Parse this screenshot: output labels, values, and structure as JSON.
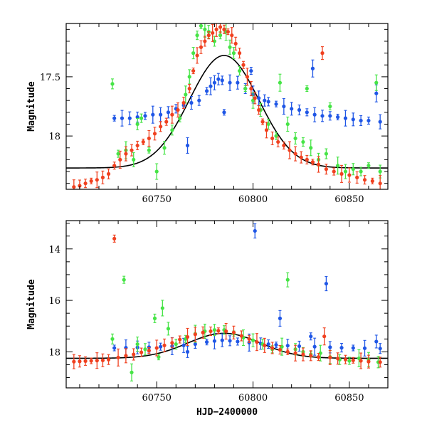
{
  "chart_data": [
    {
      "type": "scatter",
      "title": "",
      "xlabel": "",
      "ylabel": "Magnitude",
      "xlim": [
        60703,
        60870
      ],
      "ylim": [
        18.45,
        17.05
      ],
      "y_inverted": true,
      "x_ticks": [
        60750,
        60800,
        60850
      ],
      "x_tick_labels": [
        "60750",
        "60800",
        "60850"
      ],
      "y_ticks": [
        17.5,
        18
      ],
      "y_tick_labels": [
        "17.5",
        "18"
      ],
      "model": {
        "baseline": 18.27,
        "peak_mag": 17.32,
        "t0": 60785,
        "width_days": 18,
        "color": "#000000"
      },
      "series": [
        {
          "color": "#1f56e6",
          "points": [
            [
              60728,
              17.85
            ],
            [
              60732,
              17.85
            ],
            [
              60736,
              17.85
            ],
            [
              60740,
              17.84
            ],
            [
              60744,
              17.83
            ],
            [
              60748,
              17.82
            ],
            [
              60752,
              17.82
            ],
            [
              60756,
              17.8
            ],
            [
              60760,
              17.77
            ],
            [
              60764,
              17.74
            ],
            [
              60766,
              18.08
            ],
            [
              60768,
              17.72
            ],
            [
              60772,
              17.7
            ],
            [
              60776,
              17.62
            ],
            [
              60778,
              17.58
            ],
            [
              60780,
              17.55
            ],
            [
              60782,
              17.52
            ],
            [
              60784,
              17.53
            ],
            [
              60785,
              17.8
            ],
            [
              60788,
              17.55
            ],
            [
              60792,
              17.55
            ],
            [
              60796,
              17.6
            ],
            [
              60799,
              17.45
            ],
            [
              60800,
              17.65
            ],
            [
              60803,
              17.68
            ],
            [
              60806,
              17.7
            ],
            [
              60808,
              17.71
            ],
            [
              60812,
              17.73
            ],
            [
              60816,
              17.75
            ],
            [
              60820,
              17.77
            ],
            [
              60824,
              17.78
            ],
            [
              60828,
              17.8
            ],
            [
              60831,
              17.43
            ],
            [
              60832,
              17.82
            ],
            [
              60836,
              17.83
            ],
            [
              60840,
              17.83
            ],
            [
              60844,
              17.84
            ],
            [
              60848,
              17.85
            ],
            [
              60852,
              17.86
            ],
            [
              60856,
              17.87
            ],
            [
              60860,
              17.87
            ],
            [
              60864,
              17.64
            ],
            [
              60866,
              17.88
            ]
          ]
        },
        {
          "color": "#46e446",
          "points": [
            [
              60727,
              17.56
            ],
            [
              60730,
              18.15
            ],
            [
              60734,
              18.12
            ],
            [
              60738,
              18.2
            ],
            [
              60740,
              17.9
            ],
            [
              60742,
              17.85
            ],
            [
              60746,
              18.12
            ],
            [
              60750,
              18.3
            ],
            [
              60754,
              18.1
            ],
            [
              60758,
              17.95
            ],
            [
              60762,
              17.85
            ],
            [
              60765,
              17.65
            ],
            [
              60767,
              17.5
            ],
            [
              60769,
              17.3
            ],
            [
              60771,
              17.15
            ],
            [
              60773,
              17.07
            ],
            [
              60775,
              17.1
            ],
            [
              60777,
              17.12
            ],
            [
              60780,
              17.2
            ],
            [
              60783,
              17.15
            ],
            [
              60786,
              17.12
            ],
            [
              60788,
              17.25
            ],
            [
              60790,
              17.3
            ],
            [
              60793,
              17.45
            ],
            [
              60796,
              17.6
            ],
            [
              60800,
              17.7
            ],
            [
              60804,
              17.78
            ],
            [
              60808,
              17.9
            ],
            [
              60812,
              18.0
            ],
            [
              60814,
              17.55
            ],
            [
              60818,
              17.9
            ],
            [
              60822,
              18.02
            ],
            [
              60826,
              18.05
            ],
            [
              60828,
              17.6
            ],
            [
              60830,
              18.1
            ],
            [
              60834,
              18.2
            ],
            [
              60838,
              18.15
            ],
            [
              60840,
              17.75
            ],
            [
              60844,
              18.25
            ],
            [
              60848,
              18.3
            ],
            [
              60852,
              18.28
            ],
            [
              60856,
              18.3
            ],
            [
              60860,
              18.25
            ],
            [
              60864,
              17.55
            ],
            [
              60866,
              18.3
            ]
          ]
        },
        {
          "color": "#f0401f",
          "points": [
            [
              60707,
              18.43
            ],
            [
              60710,
              18.42
            ],
            [
              60713,
              18.4
            ],
            [
              60716,
              18.38
            ],
            [
              60719,
              18.37
            ],
            [
              60722,
              18.35
            ],
            [
              60725,
              18.32
            ],
            [
              60728,
              18.25
            ],
            [
              60731,
              18.2
            ],
            [
              60734,
              18.15
            ],
            [
              60737,
              18.12
            ],
            [
              60740,
              18.08
            ],
            [
              60743,
              18.05
            ],
            [
              60746,
              18.02
            ],
            [
              60749,
              17.98
            ],
            [
              60752,
              17.92
            ],
            [
              60755,
              17.88
            ],
            [
              60758,
              17.82
            ],
            [
              60761,
              17.78
            ],
            [
              60764,
              17.72
            ],
            [
              60767,
              17.6
            ],
            [
              60769,
              17.45
            ],
            [
              60771,
              17.32
            ],
            [
              60773,
              17.25
            ],
            [
              60775,
              17.2
            ],
            [
              60777,
              17.15
            ],
            [
              60779,
              17.13
            ],
            [
              60781,
              17.1
            ],
            [
              60783,
              17.08
            ],
            [
              60785,
              17.1
            ],
            [
              60787,
              17.12
            ],
            [
              60789,
              17.15
            ],
            [
              60791,
              17.22
            ],
            [
              60793,
              17.3
            ],
            [
              60795,
              17.4
            ],
            [
              60797,
              17.5
            ],
            [
              60799,
              17.6
            ],
            [
              60801,
              17.68
            ],
            [
              60803,
              17.78
            ],
            [
              60805,
              17.88
            ],
            [
              60807,
              17.95
            ],
            [
              60810,
              18.02
            ],
            [
              60813,
              18.05
            ],
            [
              60816,
              18.08
            ],
            [
              60819,
              18.12
            ],
            [
              60822,
              18.15
            ],
            [
              60825,
              18.18
            ],
            [
              60828,
              18.2
            ],
            [
              60831,
              18.22
            ],
            [
              60834,
              18.24
            ],
            [
              60836,
              17.3
            ],
            [
              60838,
              18.28
            ],
            [
              60842,
              18.3
            ],
            [
              60846,
              18.32
            ],
            [
              60850,
              18.33
            ],
            [
              60854,
              18.35
            ],
            [
              60858,
              18.37
            ],
            [
              60862,
              18.38
            ],
            [
              60866,
              18.4
            ]
          ]
        }
      ]
    },
    {
      "type": "scatter",
      "title": "",
      "xlabel": "HJD−2400000",
      "ylabel": "Magnitude",
      "xlim": [
        60703,
        60870
      ],
      "ylim": [
        19.4,
        12.9
      ],
      "y_inverted": true,
      "x_ticks": [
        60750,
        60800,
        60850
      ],
      "x_tick_labels": [
        "60750",
        "60800",
        "60850"
      ],
      "y_ticks": [
        14,
        16,
        18
      ],
      "y_tick_labels": [
        "14",
        "16",
        "18"
      ],
      "model": {
        "baseline": 18.25,
        "peak_mag": 17.28,
        "t0": 60785,
        "width_days": 19,
        "color": "#000000"
      },
      "series": [
        {
          "color": "#1f56e6",
          "points": [
            [
              60728,
              17.85
            ],
            [
              60734,
              17.84
            ],
            [
              60740,
              17.83
            ],
            [
              60746,
              17.82
            ],
            [
              60752,
              17.8
            ],
            [
              60758,
              17.78
            ],
            [
              60764,
              17.75
            ],
            [
              60766,
              18.0
            ],
            [
              60770,
              17.7
            ],
            [
              60776,
              17.62
            ],
            [
              60780,
              17.58
            ],
            [
              60784,
              17.55
            ],
            [
              60788,
              17.57
            ],
            [
              60792,
              17.6
            ],
            [
              60798,
              17.64
            ],
            [
              60801,
              13.3
            ],
            [
              60804,
              17.68
            ],
            [
              60808,
              17.7
            ],
            [
              60812,
              17.73
            ],
            [
              60814,
              16.7
            ],
            [
              60818,
              17.76
            ],
            [
              60824,
              17.78
            ],
            [
              60830,
              17.4
            ],
            [
              60832,
              17.8
            ],
            [
              60838,
              15.35
            ],
            [
              60840,
              17.82
            ],
            [
              60846,
              17.84
            ],
            [
              60852,
              17.85
            ],
            [
              60858,
              17.86
            ],
            [
              60864,
              17.6
            ],
            [
              60866,
              17.87
            ]
          ]
        },
        {
          "color": "#46e446",
          "points": [
            [
              60727,
              17.5
            ],
            [
              60733,
              15.2
            ],
            [
              60737,
              18.8
            ],
            [
              60740,
              17.7
            ],
            [
              60744,
              17.9
            ],
            [
              60749,
              16.7
            ],
            [
              60751,
              18.2
            ],
            [
              60753,
              16.3
            ],
            [
              60756,
              17.1
            ],
            [
              60760,
              17.7
            ],
            [
              60765,
              17.5
            ],
            [
              60770,
              17.3
            ],
            [
              60775,
              17.2
            ],
            [
              60780,
              17.15
            ],
            [
              60785,
              17.15
            ],
            [
              60790,
              17.3
            ],
            [
              60795,
              17.45
            ],
            [
              60800,
              17.55
            ],
            [
              60805,
              17.7
            ],
            [
              60810,
              17.9
            ],
            [
              60815,
              17.8
            ],
            [
              60818,
              15.2
            ],
            [
              60822,
              17.9
            ],
            [
              60826,
              18.0
            ],
            [
              60830,
              18.1
            ],
            [
              60835,
              18.05
            ],
            [
              60840,
              18.2
            ],
            [
              60845,
              18.3
            ],
            [
              60850,
              18.35
            ],
            [
              60855,
              18.25
            ],
            [
              60860,
              18.3
            ],
            [
              60865,
              18.4
            ]
          ]
        },
        {
          "color": "#f0401f",
          "points": [
            [
              60707,
              18.38
            ],
            [
              60710,
              18.37
            ],
            [
              60713,
              18.36
            ],
            [
              60716,
              18.35
            ],
            [
              60719,
              18.34
            ],
            [
              60722,
              18.33
            ],
            [
              60725,
              18.3
            ],
            [
              60728,
              13.6
            ],
            [
              60730,
              18.22
            ],
            [
              60734,
              18.15
            ],
            [
              60738,
              18.1
            ],
            [
              60742,
              18.02
            ],
            [
              60746,
              17.95
            ],
            [
              60750,
              17.85
            ],
            [
              60754,
              17.75
            ],
            [
              60758,
              17.65
            ],
            [
              60762,
              17.52
            ],
            [
              60766,
              17.42
            ],
            [
              60770,
              17.32
            ],
            [
              60774,
              17.25
            ],
            [
              60778,
              17.2
            ],
            [
              60782,
              17.18
            ],
            [
              60786,
              17.2
            ],
            [
              60790,
              17.25
            ],
            [
              60794,
              17.38
            ],
            [
              60798,
              17.5
            ],
            [
              60802,
              17.62
            ],
            [
              60806,
              17.75
            ],
            [
              60810,
              17.85
            ],
            [
              60814,
              17.92
            ],
            [
              60818,
              18.0
            ],
            [
              60822,
              18.05
            ],
            [
              60826,
              18.1
            ],
            [
              60830,
              18.15
            ],
            [
              60834,
              18.2
            ],
            [
              60837,
              17.4
            ],
            [
              60840,
              18.22
            ],
            [
              60844,
              18.26
            ],
            [
              60848,
              18.3
            ],
            [
              60852,
              18.33
            ],
            [
              60856,
              18.35
            ],
            [
              60860,
              18.38
            ],
            [
              60866,
              18.4
            ]
          ]
        }
      ]
    }
  ]
}
